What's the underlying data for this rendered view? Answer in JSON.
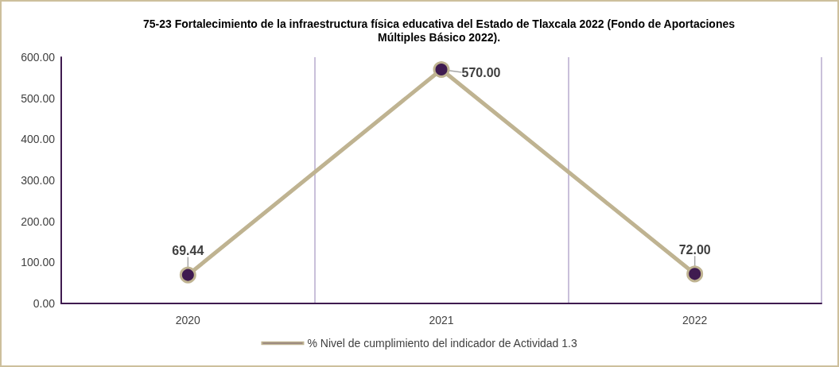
{
  "chart_data": {
    "type": "line",
    "title": "75-23 Fortalecimiento de la infraestructura física educativa del Estado de Tlaxcala 2022 (Fondo de Aportaciones\nMúltiples Básico 2022).",
    "categories": [
      "2020",
      "2021",
      "2022"
    ],
    "series": [
      {
        "name": "% Nivel de cumplimiento del indicador de Actividad 1.3",
        "color": "#bfb391",
        "values": [
          69.44,
          570,
          72.0
        ],
        "value_labels": [
          "69.44",
          "570.00",
          "72.00"
        ]
      }
    ],
    "ylim": [
      0,
      600
    ],
    "yticks": [
      {
        "value": 0,
        "label": "0.00"
      },
      {
        "value": 100,
        "label": "100.00"
      },
      {
        "value": 200,
        "label": "200.00"
      },
      {
        "value": 300,
        "label": "300.00"
      },
      {
        "value": 400,
        "label": "400.00"
      },
      {
        "value": 500,
        "label": "500.00"
      },
      {
        "value": 600,
        "label": "600.00"
      }
    ],
    "grid": "x",
    "legend": "bottom",
    "marker": "circle",
    "line_style": "solid"
  }
}
